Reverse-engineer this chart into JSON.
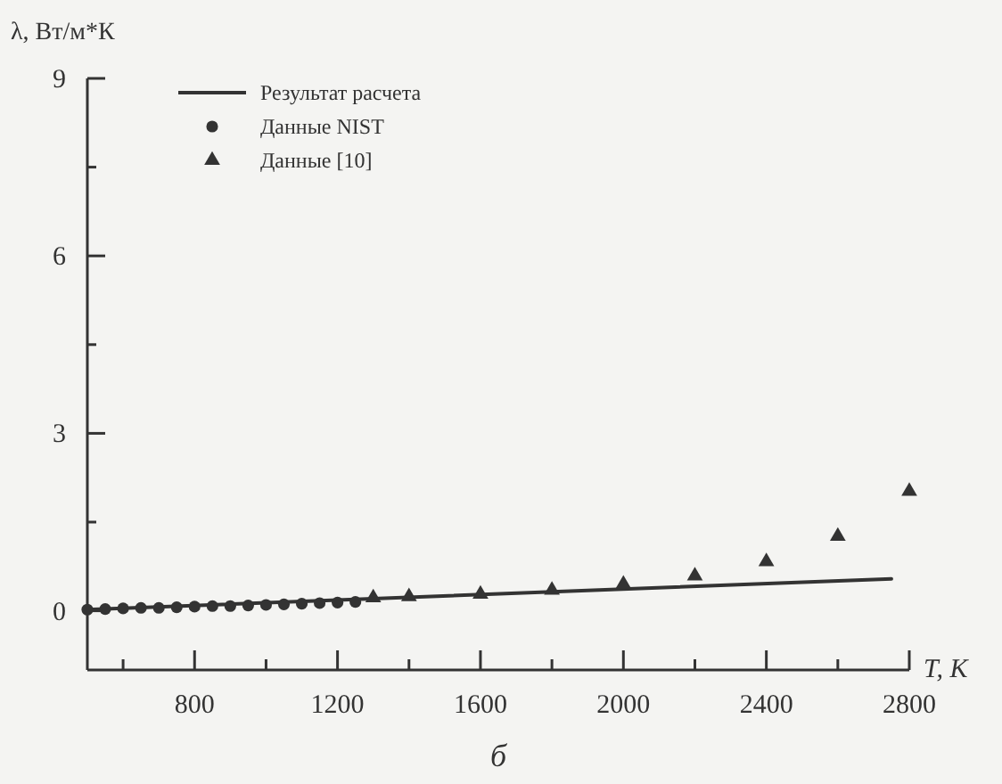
{
  "chart_data": {
    "type": "scatter",
    "xlabel": "T, К",
    "ylabel": "λ, Вт/м*К",
    "xlim": [
      500,
      2800
    ],
    "ylim": [
      -1,
      9
    ],
    "xticks": [
      {
        "value": 600,
        "label": null
      },
      800,
      {
        "value": 1000,
        "label": null
      },
      1200,
      {
        "value": 1400,
        "label": null
      },
      1600,
      {
        "value": 1800,
        "label": null
      },
      2000,
      {
        "value": 2200,
        "label": null
      },
      2400,
      {
        "value": 2600,
        "label": null
      },
      2800
    ],
    "yticks": [
      0,
      {
        "value": 1.5,
        "label": null
      },
      3,
      {
        "value": 4.5,
        "label": null
      },
      6,
      {
        "value": 7.5,
        "label": null
      },
      9
    ],
    "legend": "top left",
    "grid": false,
    "series": [
      {
        "name": "Результат расчета",
        "type": "line",
        "marker": "none",
        "line_style": "solid",
        "color": "#333333",
        "x": [
          500,
          2750
        ],
        "values": [
          0.02,
          0.54
        ]
      },
      {
        "name": "Данные NIST",
        "marker": "circle",
        "color": "#333333",
        "x": [
          500,
          550,
          600,
          650,
          700,
          750,
          800,
          850,
          900,
          950,
          1000,
          1050,
          1100,
          1150,
          1200,
          1250
        ],
        "values": [
          0.02,
          0.03,
          0.04,
          0.05,
          0.05,
          0.06,
          0.07,
          0.08,
          0.08,
          0.09,
          0.1,
          0.11,
          0.12,
          0.13,
          0.14,
          0.15
        ]
      },
      {
        "name": "Данные [10]",
        "marker": "triangle",
        "color": "#333333",
        "x": [
          1300,
          1400,
          1600,
          1800,
          2000,
          2200,
          2400,
          2600,
          2800
        ],
        "values": [
          0.22,
          0.24,
          0.28,
          0.35,
          0.45,
          0.59,
          0.83,
          1.26,
          2.02
        ]
      }
    ],
    "annotations": [
      "б"
    ]
  }
}
